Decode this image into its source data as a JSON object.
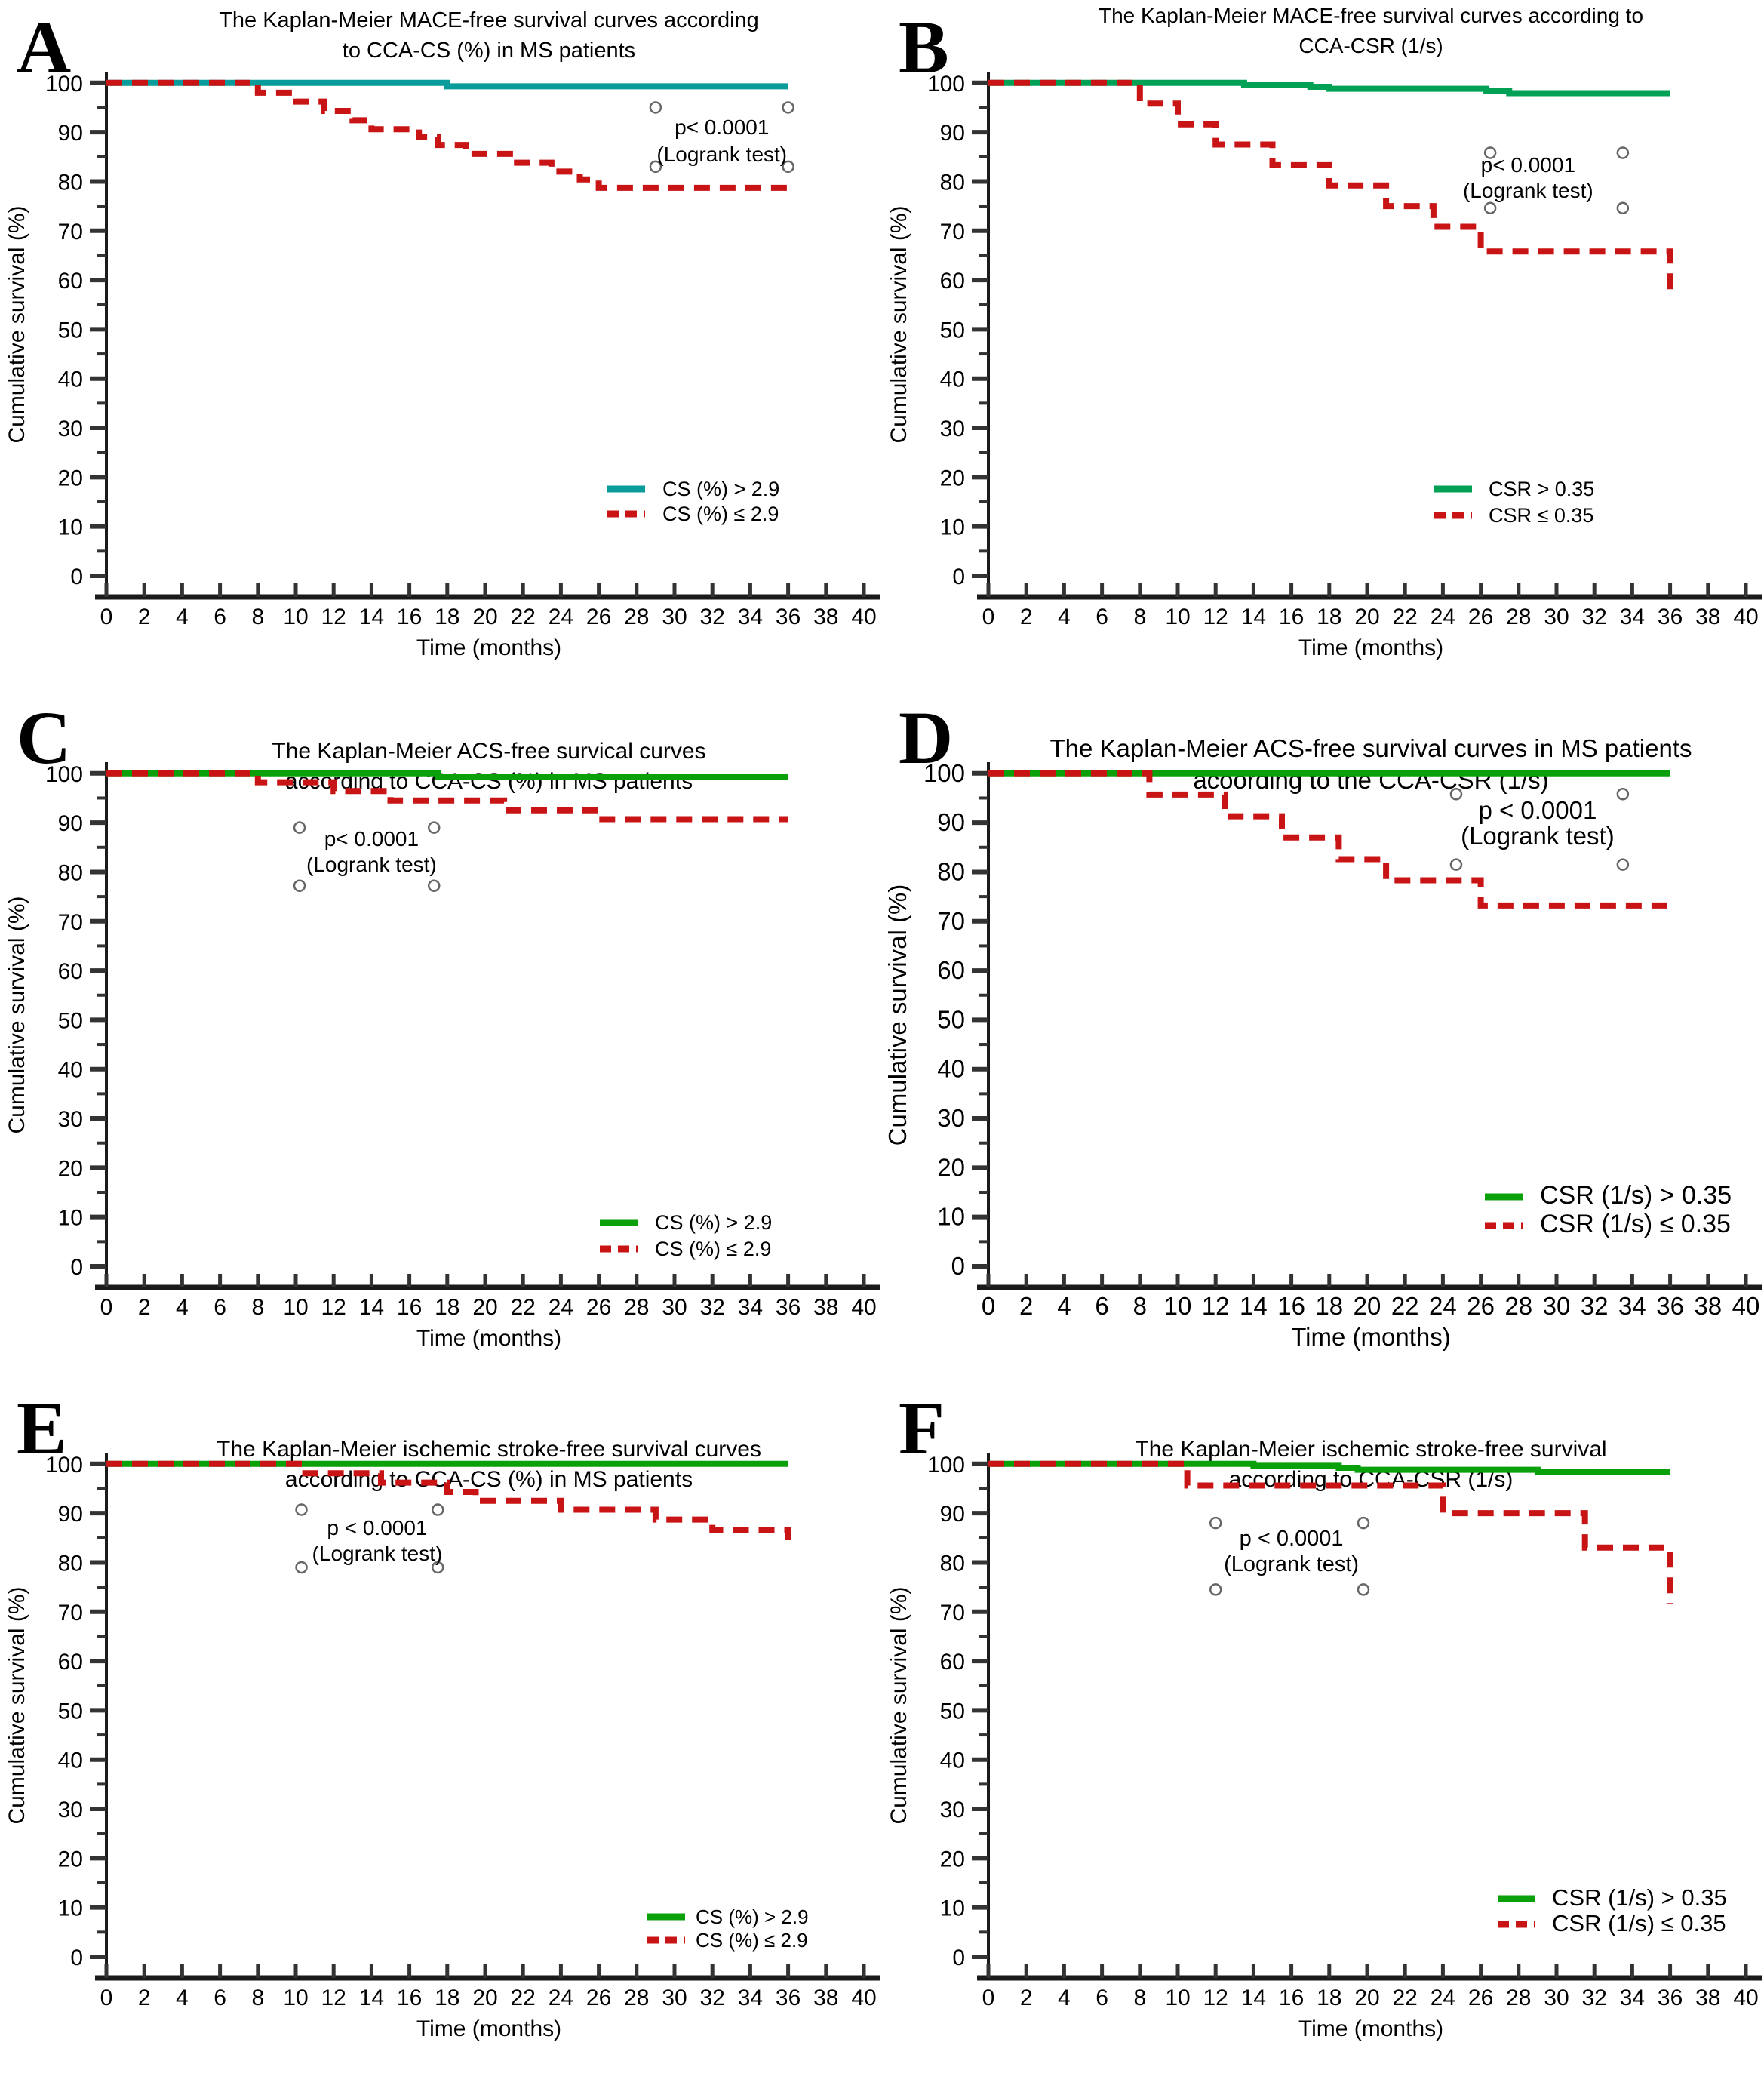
{
  "figure": {
    "xlabel": "Time (months)",
    "ylabel": "Cumulative survival (%)",
    "x_ticks": [
      0,
      2,
      4,
      6,
      8,
      10,
      12,
      14,
      16,
      18,
      20,
      22,
      24,
      26,
      28,
      30,
      32,
      34,
      36,
      38,
      40
    ],
    "y_ticks": [
      0,
      10,
      20,
      30,
      40,
      50,
      60,
      70,
      80,
      90,
      100
    ],
    "colors": {
      "teal": "#0A9B9B",
      "emerald": "#00A155",
      "green": "#0AA00A",
      "red": "#C81414",
      "axis": "#1a1a1a",
      "tick": "#333333",
      "censor": "#666666"
    }
  },
  "chart_data": [
    {
      "type": "line",
      "id": "A",
      "title_lines": [
        "The Kaplan-Meier MACE-free survival curves according",
        "to CCA-CS (%) in MS patients"
      ],
      "title_y": [
        36,
        76
      ],
      "title_size": 29,
      "p_lines": [
        "p< 0.0001",
        "(Logrank test)"
      ],
      "p_t": 32.5,
      "p_rows_y": [
        178,
        214
      ],
      "p_size": 28,
      "xlabel": "Time (months)",
      "ylabel": "Cumulative survival (%)",
      "xlim": [
        0,
        40
      ],
      "ylim": [
        0,
        100
      ],
      "series": [
        {
          "name": "CS (%) > 2.9",
          "color": "#0A9B9B",
          "style": "solid",
          "points": [
            [
              0,
              100
            ],
            [
              18,
              100
            ],
            [
              18,
              99.3
            ],
            [
              36,
              99.3
            ]
          ]
        },
        {
          "name": "CS (%) ≤ 2.9",
          "color": "#C81414",
          "style": "dashed",
          "points": [
            [
              0,
              100
            ],
            [
              8,
              100
            ],
            [
              8,
              98
            ],
            [
              10,
              98
            ],
            [
              10,
              96.2
            ],
            [
              11.5,
              96.2
            ],
            [
              11.5,
              94.3
            ],
            [
              13,
              94.3
            ],
            [
              13,
              92.4
            ],
            [
              14,
              92.4
            ],
            [
              14,
              90.6
            ],
            [
              16.5,
              90.6
            ],
            [
              16.5,
              89
            ],
            [
              17.5,
              89
            ],
            [
              17.5,
              87.4
            ],
            [
              19,
              87.4
            ],
            [
              19,
              85.6
            ],
            [
              21.5,
              85.6
            ],
            [
              21.5,
              83.8
            ],
            [
              23.5,
              83.8
            ],
            [
              23.5,
              82
            ],
            [
              25,
              82
            ],
            [
              25,
              80.4
            ],
            [
              26,
              80.4
            ],
            [
              26,
              78.7
            ],
            [
              36,
              78.7
            ],
            [
              36,
              77.2
            ]
          ]
        }
      ],
      "censor_circles": [
        [
          29,
          95
        ],
        [
          36,
          95
        ],
        [
          29,
          83
        ],
        [
          36,
          83
        ]
      ],
      "legend": {
        "x_swatch": 805,
        "x_text": 878,
        "rows_y": [
          657,
          690
        ],
        "font": 27,
        "entries": [
          {
            "label": "CS (%) > 2.9",
            "style": "solid",
            "color": "#0A9B9B"
          },
          {
            "label": "CS (%) ≤ 2.9",
            "style": "dashed",
            "color": "#C81414"
          }
        ]
      },
      "tick_font": 30
    },
    {
      "type": "line",
      "id": "B",
      "title_lines": [
        "The Kaplan-Meier MACE-free survival curves according to",
        "CCA-CSR (1/s)"
      ],
      "title_y": [
        30,
        70
      ],
      "title_size": 28,
      "p_lines": [
        "p< 0.0001",
        "(Logrank test)"
      ],
      "p_t": 28.5,
      "p_rows_y": [
        228,
        262
      ],
      "p_size": 28,
      "xlabel": "Time (months)",
      "ylabel": "Cumulative survival (%)",
      "xlim": [
        0,
        40
      ],
      "ylim": [
        0,
        100
      ],
      "series": [
        {
          "name": "CSR > 0.35",
          "color": "#00A155",
          "style": "solid",
          "points": [
            [
              0,
              100
            ],
            [
              13.5,
              100
            ],
            [
              13.5,
              99.6
            ],
            [
              17,
              99.6
            ],
            [
              17,
              99.2
            ],
            [
              18,
              99.2
            ],
            [
              18,
              98.8
            ],
            [
              26.3,
              98.8
            ],
            [
              26.3,
              98.3
            ],
            [
              27.5,
              98.3
            ],
            [
              27.5,
              97.9
            ],
            [
              36,
              97.9
            ]
          ]
        },
        {
          "name": "CSR ≤ 0.35",
          "color": "#C81414",
          "style": "dashed",
          "points": [
            [
              0,
              100
            ],
            [
              8,
              100
            ],
            [
              8,
              95.8
            ],
            [
              10,
              95.8
            ],
            [
              10,
              91.6
            ],
            [
              12,
              91.6
            ],
            [
              12,
              87.5
            ],
            [
              15,
              87.5
            ],
            [
              15,
              83.3
            ],
            [
              18,
              83.3
            ],
            [
              18,
              79.2
            ],
            [
              21,
              79.2
            ],
            [
              21,
              75
            ],
            [
              23.5,
              75
            ],
            [
              23.5,
              70.8
            ],
            [
              26,
              70.8
            ],
            [
              26,
              65.8
            ],
            [
              36,
              65.8
            ],
            [
              36,
              57
            ]
          ]
        }
      ],
      "censor_circles": [
        [
          26.5,
          85.8
        ],
        [
          33.5,
          85.8
        ],
        [
          26.5,
          74.6
        ],
        [
          33.5,
          74.6
        ]
      ],
      "legend": {
        "x_swatch": 732,
        "x_text": 804,
        "rows_y": [
          657,
          692
        ],
        "font": 27,
        "entries": [
          {
            "label": "CSR > 0.35",
            "style": "solid",
            "color": "#00A155"
          },
          {
            "label": "CSR ≤ 0.35",
            "style": "dashed",
            "color": "#C81414"
          }
        ]
      },
      "tick_font": 30
    },
    {
      "type": "line",
      "id": "C",
      "title_lines": [
        "The Kaplan-Meier ACS-free survical curves",
        "according to CCA-CS (%) in MS patients"
      ],
      "title_y": [
        90,
        130
      ],
      "title_size": 30,
      "p_lines": [
        "p< 0.0001",
        "(Logrank test)"
      ],
      "p_t": 14,
      "p_rows_y": [
        206,
        240
      ],
      "p_size": 28,
      "xlabel": "Time (months)",
      "ylabel": "Cumulative survival (%)",
      "xlim": [
        0,
        40
      ],
      "ylim": [
        0,
        100
      ],
      "series": [
        {
          "name": "CS (%) > 2.9",
          "color": "#0AA00A",
          "style": "solid",
          "points": [
            [
              0,
              100
            ],
            [
              17.5,
              100
            ],
            [
              17.5,
              99.3
            ],
            [
              36,
              99.3
            ]
          ]
        },
        {
          "name": "CS (%) ≤ 2.9",
          "color": "#C81414",
          "style": "dashed",
          "points": [
            [
              0,
              100
            ],
            [
              8,
              100
            ],
            [
              8,
              98.2
            ],
            [
              12,
              98.2
            ],
            [
              12,
              96.4
            ],
            [
              15,
              96.4
            ],
            [
              15,
              94.5
            ],
            [
              21,
              94.5
            ],
            [
              21,
              92.5
            ],
            [
              26,
              92.5
            ],
            [
              26,
              90.7
            ],
            [
              36,
              90.7
            ]
          ]
        }
      ],
      "censor_circles": [
        [
          10.2,
          89
        ],
        [
          17.3,
          89
        ],
        [
          10.2,
          77.2
        ],
        [
          17.3,
          77.2
        ]
      ],
      "legend": {
        "x_swatch": 795,
        "x_text": 868,
        "rows_y": [
          714,
          749
        ],
        "font": 27,
        "entries": [
          {
            "label": "CS (%) > 2.9",
            "style": "solid",
            "color": "#0AA00A"
          },
          {
            "label": "CS (%) ≤ 2.9",
            "style": "dashed",
            "color": "#C81414"
          }
        ]
      },
      "tick_font": 30
    },
    {
      "type": "line",
      "id": "D",
      "title_lines": [
        "The Kaplan-Meier ACS-free survival curves in MS patients",
        "acoording to the CCA-CSR (1/s)"
      ],
      "title_y": [
        88,
        130
      ],
      "title_size": 33,
      "p_lines": [
        "p < 0.0001",
        "(Logrank test)"
      ],
      "p_t": 29,
      "p_rows_y": [
        170,
        204
      ],
      "p_size": 33,
      "xlabel": "Time (months)",
      "ylabel": "Cumulative survival (%)",
      "xlim": [
        0,
        40
      ],
      "ylim": [
        0,
        100
      ],
      "series": [
        {
          "name": "CSR (1/s) >  0.35",
          "color": "#0AA00A",
          "style": "solid",
          "points": [
            [
              0,
              100
            ],
            [
              36,
              100
            ]
          ]
        },
        {
          "name": "CSR (1/s) ≤  0.35",
          "color": "#C81414",
          "style": "dashed",
          "points": [
            [
              0,
              100
            ],
            [
              8.5,
              100
            ],
            [
              8.5,
              95.7
            ],
            [
              12.5,
              95.7
            ],
            [
              12.5,
              91.3
            ],
            [
              15.5,
              91.3
            ],
            [
              15.5,
              87
            ],
            [
              18.5,
              87
            ],
            [
              18.5,
              82.6
            ],
            [
              21,
              82.6
            ],
            [
              21,
              78.3
            ],
            [
              26,
              78.3
            ],
            [
              26,
              73.2
            ],
            [
              36,
              73.2
            ]
          ]
        }
      ],
      "censor_circles": [
        [
          24.7,
          95.8
        ],
        [
          33.5,
          95.8
        ],
        [
          24.7,
          81.5
        ],
        [
          33.5,
          81.5
        ]
      ],
      "legend": {
        "x_swatch": 799,
        "x_text": 872,
        "rows_y": [
          680,
          718
        ],
        "font": 34,
        "entries": [
          {
            "label": "CSR (1/s) >  0.35",
            "style": "solid",
            "color": "#0AA00A"
          },
          {
            "label": "CSR (1/s) ≤  0.35",
            "style": "dashed",
            "color": "#C81414"
          }
        ]
      },
      "tick_font": 33
    },
    {
      "type": "line",
      "id": "E",
      "title_lines": [
        "The Kaplan-Meier ischemic stroke-free survival curves",
        "according to CCA-CS (%) in MS patients"
      ],
      "title_y": [
        100,
        140
      ],
      "title_size": 30,
      "p_lines": [
        "p < 0.0001",
        "(Logrank test)"
      ],
      "p_t": 14.3,
      "p_rows_y": [
        204,
        238
      ],
      "p_size": 28,
      "xlabel": "Time (months)",
      "ylabel": "Cumulative survival (%)",
      "xlim": [
        0,
        40
      ],
      "ylim": [
        0,
        100
      ],
      "series": [
        {
          "name": "CS (%) > 2.9",
          "color": "#0AA00A",
          "style": "solid",
          "points": [
            [
              0,
              100
            ],
            [
              36,
              100
            ]
          ]
        },
        {
          "name": "CS (%) ≤ 2.9",
          "color": "#C81414",
          "style": "dashed",
          "points": [
            [
              0,
              100
            ],
            [
              10.5,
              100
            ],
            [
              10.5,
              98.1
            ],
            [
              14.5,
              98.1
            ],
            [
              14.5,
              96.2
            ],
            [
              18,
              96.2
            ],
            [
              18,
              94.3
            ],
            [
              19.5,
              94.3
            ],
            [
              19.5,
              92.5
            ],
            [
              24,
              92.5
            ],
            [
              24,
              90.7
            ],
            [
              29,
              90.7
            ],
            [
              29,
              88.7
            ],
            [
              32,
              88.7
            ],
            [
              32,
              86.6
            ],
            [
              36,
              86.6
            ],
            [
              36,
              84.5
            ]
          ]
        }
      ],
      "censor_circles": [
        [
          10.3,
          90.7
        ],
        [
          17.5,
          90.7
        ],
        [
          10.3,
          79
        ],
        [
          17.5,
          79
        ]
      ],
      "legend": {
        "x_swatch": 858,
        "x_text": 922,
        "rows_y": [
          719,
          750
        ],
        "font": 26,
        "entries": [
          {
            "label": "CS (%) > 2.9",
            "style": "solid",
            "color": "#0AA00A"
          },
          {
            "label": "CS (%) ≤ 2.9",
            "style": "dashed",
            "color": "#C81414"
          }
        ]
      },
      "tick_font": 30
    },
    {
      "type": "line",
      "id": "F",
      "title_lines": [
        "The Kaplan-Meier ischemic stroke-free survival",
        "according to CCA-CSR (1/s)"
      ],
      "title_y": [
        100,
        140
      ],
      "title_size": 30,
      "p_lines": [
        "p < 0.0001",
        "(Logrank test)"
      ],
      "p_t": 16,
      "p_rows_y": [
        218,
        252
      ],
      "p_size": 29,
      "xlabel": "Time (months)",
      "ylabel": "Cumulative survival (%)",
      "xlim": [
        0,
        40
      ],
      "ylim": [
        0,
        100
      ],
      "series": [
        {
          "name": "CSR (1/s) > 0.35",
          "color": "#0AA00A",
          "style": "solid",
          "points": [
            [
              0,
              100
            ],
            [
              14,
              100
            ],
            [
              14,
              99.6
            ],
            [
              18.5,
              99.6
            ],
            [
              18.5,
              99.2
            ],
            [
              19.5,
              99.2
            ],
            [
              19.5,
              98.8
            ],
            [
              29,
              98.8
            ],
            [
              29,
              98.3
            ],
            [
              36,
              98.3
            ]
          ]
        },
        {
          "name": "CSR (1/s) ≤  0.35",
          "color": "#C81414",
          "style": "dashed",
          "points": [
            [
              0,
              100
            ],
            [
              10.5,
              100
            ],
            [
              10.5,
              95.6
            ],
            [
              24,
              95.6
            ],
            [
              24,
              90
            ],
            [
              31.5,
              90
            ],
            [
              31.5,
              83
            ],
            [
              36,
              83
            ],
            [
              36,
              71.5
            ]
          ]
        }
      ],
      "censor_circles": [
        [
          12,
          88
        ],
        [
          19.8,
          88
        ],
        [
          12,
          74.5
        ],
        [
          19.8,
          74.5
        ]
      ],
      "legend": {
        "x_swatch": 816,
        "x_text": 888,
        "rows_y": [
          695,
          729
        ],
        "font": 31,
        "entries": [
          {
            "label": "CSR (1/s) > 0.35",
            "style": "solid",
            "color": "#0AA00A"
          },
          {
            "label": "CSR (1/s) ≤  0.35",
            "style": "dashed",
            "color": "#C81414"
          }
        ]
      },
      "tick_font": 30
    }
  ]
}
